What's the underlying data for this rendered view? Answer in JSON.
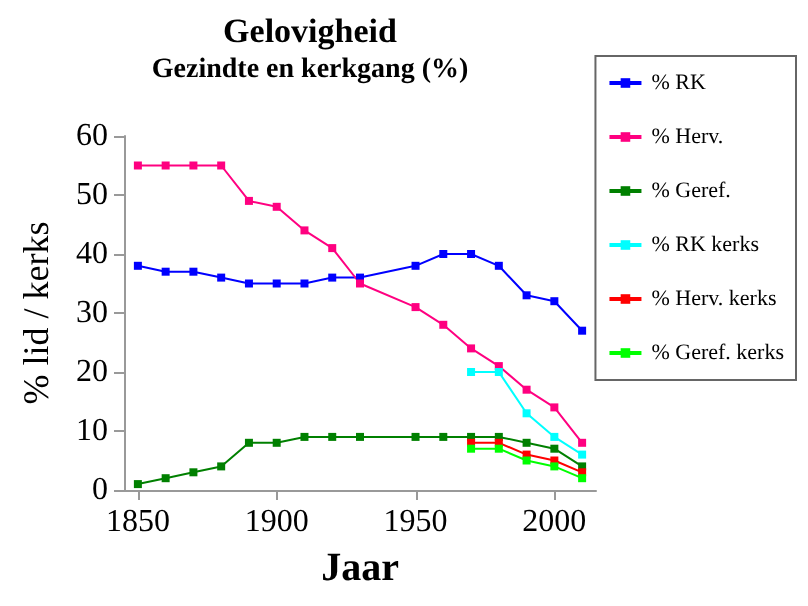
{
  "chart_data": {
    "type": "line",
    "title": "Gelovigheid",
    "subtitle": "Gezindte en kerkgang (%)",
    "xlabel": "Jaar",
    "ylabel": "% lid / kerks",
    "xlim": [
      1845,
      2015
    ],
    "xticks": [
      1850,
      1900,
      1950,
      2000
    ],
    "ylim": [
      0,
      60
    ],
    "yticks": [
      0,
      10,
      20,
      30,
      40,
      50,
      60
    ],
    "grid": false,
    "legend": "right",
    "marker": "square",
    "line_style": "solid",
    "series": [
      {
        "name": "% RK",
        "color": "#0000ff",
        "x": [
          1850,
          1860,
          1870,
          1880,
          1890,
          1900,
          1910,
          1920,
          1930,
          1950,
          1960,
          1970,
          1980,
          1990,
          2000,
          2010
        ],
        "values": [
          38,
          37,
          37,
          36,
          35,
          35,
          35,
          36,
          36,
          38,
          40,
          40,
          38,
          33,
          32,
          27
        ]
      },
      {
        "name": "% Herv.",
        "color": "#ff0080",
        "x": [
          1850,
          1860,
          1870,
          1880,
          1890,
          1900,
          1910,
          1920,
          1930,
          1950,
          1960,
          1970,
          1980,
          1990,
          2000,
          2010
        ],
        "values": [
          55,
          55,
          55,
          55,
          49,
          48,
          44,
          41,
          35,
          31,
          28,
          24,
          21,
          17,
          14,
          8
        ]
      },
      {
        "name": "% Geref.",
        "color": "#008000",
        "x": [
          1850,
          1860,
          1870,
          1880,
          1890,
          1900,
          1910,
          1920,
          1930,
          1950,
          1960,
          1970,
          1980,
          1990,
          2000,
          2010
        ],
        "values": [
          1,
          2,
          3,
          4,
          8,
          8,
          9,
          9,
          9,
          9,
          9,
          9,
          9,
          8,
          7,
          4
        ]
      },
      {
        "name": "% RK kerks",
        "color": "#00ffff",
        "x": [
          1970,
          1980,
          1990,
          2000,
          2010
        ],
        "values": [
          20,
          20,
          13,
          9,
          6
        ]
      },
      {
        "name": "% Herv. kerks",
        "color": "#ff0000",
        "x": [
          1970,
          1980,
          1990,
          2000,
          2010
        ],
        "values": [
          8,
          8,
          6,
          5,
          3
        ]
      },
      {
        "name": "% Geref. kerks",
        "color": "#00ff00",
        "x": [
          1970,
          1980,
          1990,
          2000,
          2010
        ],
        "values": [
          7,
          7,
          5,
          4,
          2
        ]
      }
    ]
  }
}
